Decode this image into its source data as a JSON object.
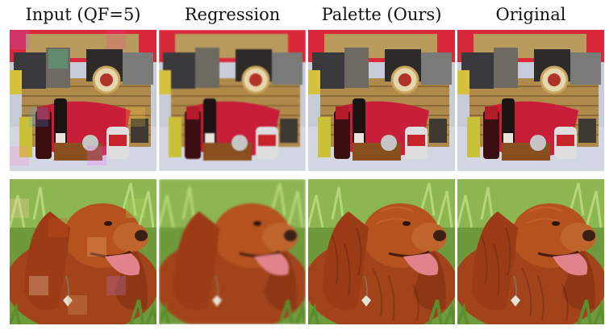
{
  "headers": [
    "Input (QF=5)",
    "Regression",
    "Palette (Ours)",
    "Original"
  ],
  "rows": [
    {
      "subject": "gift basket"
    },
    {
      "subject": "dog"
    }
  ]
}
